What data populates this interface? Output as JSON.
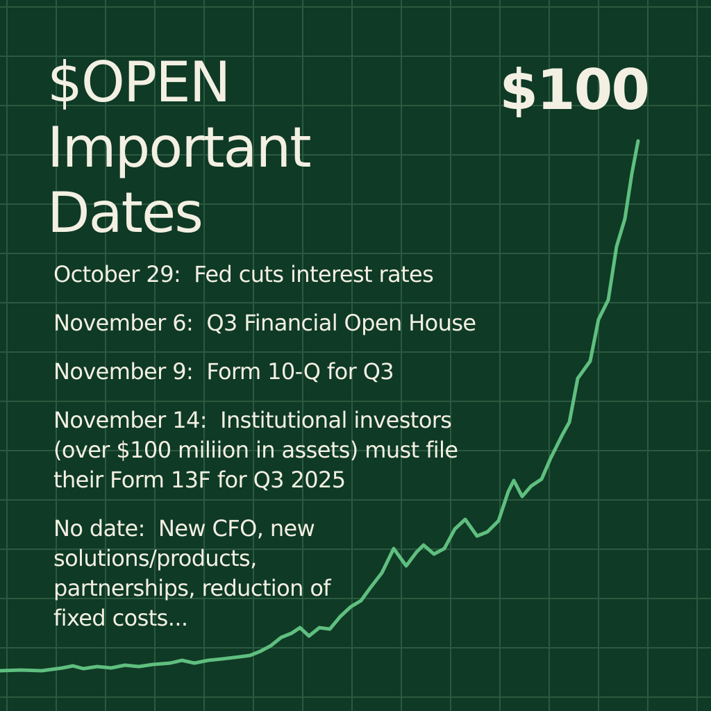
{
  "header": {
    "title_lines": [
      "$OPEN",
      "Important",
      "Dates"
    ],
    "price_label": "$100"
  },
  "events": [
    {
      "label": "October 29:",
      "text": "Fed cuts interest rates"
    },
    {
      "label": "November 6:",
      "text": "Q3 Financial Open House"
    },
    {
      "label": "November 9:",
      "text": "Form 10-Q for Q3"
    },
    {
      "label": "November 14:",
      "text": "Institutional investors (over $100 miliion in assets) must file their Form 13F for Q3 2025"
    },
    {
      "label": "No date:",
      "text": "New CFO, new solutions/products, partnerships, reduction of fixed costs..."
    }
  ],
  "colors": {
    "background": "#0f3a25",
    "grid": "#2a5a40",
    "line": "#5fbf7f",
    "text": "#f3f0e3"
  }
}
